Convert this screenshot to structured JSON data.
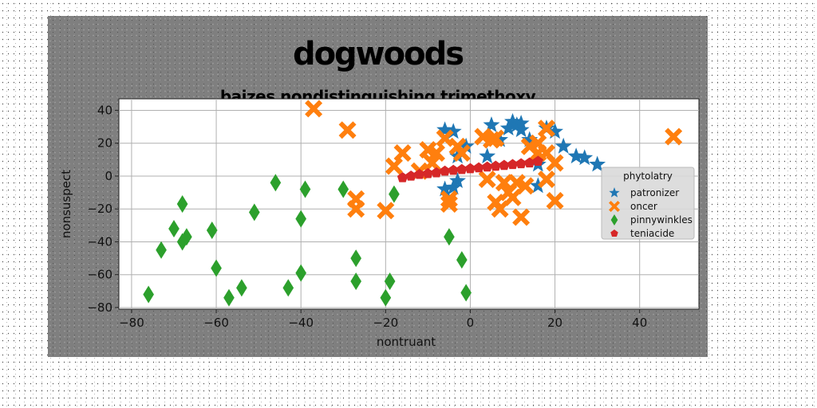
{
  "chart_data": {
    "type": "scatter",
    "title": "dogwoods",
    "subtitle": "baizes nondistinguishing trimethoxy",
    "xlabel": "nontruant",
    "ylabel": "nonsuspect",
    "xlim": [
      -83,
      54
    ],
    "ylim": [
      -81,
      47
    ],
    "xticks": [
      -80,
      -60,
      -40,
      -20,
      0,
      20,
      40
    ],
    "yticks": [
      -80,
      -60,
      -40,
      -20,
      0,
      20,
      40
    ],
    "grid": true,
    "legend": {
      "title": "phytolatry",
      "placement": "center-right"
    },
    "series": [
      {
        "name": "patronizer",
        "marker": "star",
        "color": "#1f77b4",
        "points": [
          [
            -6,
            28
          ],
          [
            -4,
            27
          ],
          [
            -3,
            12
          ],
          [
            -1,
            18
          ],
          [
            -6,
            -8
          ],
          [
            -4,
            -7
          ],
          [
            -3,
            -3
          ],
          [
            4,
            12
          ],
          [
            5,
            31
          ],
          [
            9,
            29
          ],
          [
            10,
            33
          ],
          [
            11,
            31
          ],
          [
            12,
            32
          ],
          [
            12,
            28
          ],
          [
            14,
            22
          ],
          [
            16,
            7
          ],
          [
            16,
            -6
          ],
          [
            18,
            29
          ],
          [
            20,
            27
          ],
          [
            22,
            18
          ],
          [
            25,
            12
          ],
          [
            27,
            11
          ],
          [
            30,
            7
          ],
          [
            7,
            22
          ]
        ]
      },
      {
        "name": "oncer",
        "marker": "x",
        "color": "#ff7f0e",
        "points": [
          [
            -37,
            41
          ],
          [
            -29,
            28
          ],
          [
            -27,
            -14
          ],
          [
            -27,
            -20
          ],
          [
            -20,
            -21
          ],
          [
            -18,
            6
          ],
          [
            -16,
            14
          ],
          [
            -12,
            3
          ],
          [
            -10,
            16
          ],
          [
            -9,
            8
          ],
          [
            -8,
            14
          ],
          [
            -6,
            23
          ],
          [
            -5,
            -14
          ],
          [
            -5,
            -17
          ],
          [
            -3,
            18
          ],
          [
            -2,
            14
          ],
          [
            3,
            24
          ],
          [
            4,
            -2
          ],
          [
            5,
            22
          ],
          [
            6,
            23
          ],
          [
            6,
            -16
          ],
          [
            7,
            -20
          ],
          [
            8,
            -4
          ],
          [
            9,
            -10
          ],
          [
            10,
            -13
          ],
          [
            11,
            -4
          ],
          [
            12,
            -25
          ],
          [
            13,
            -6
          ],
          [
            14,
            18
          ],
          [
            16,
            14
          ],
          [
            16,
            20
          ],
          [
            18,
            14
          ],
          [
            18,
            -2
          ],
          [
            18,
            29
          ],
          [
            20,
            8
          ],
          [
            20,
            -15
          ],
          [
            48,
            24
          ]
        ]
      },
      {
        "name": "pinnywinkles",
        "marker": "diamond",
        "color": "#2ca02c",
        "points": [
          [
            -76,
            -72
          ],
          [
            -73,
            -45
          ],
          [
            -70,
            -32
          ],
          [
            -68,
            -40
          ],
          [
            -68,
            -17
          ],
          [
            -67,
            -37
          ],
          [
            -61,
            -33
          ],
          [
            -60,
            -56
          ],
          [
            -57,
            -74
          ],
          [
            -54,
            -68
          ],
          [
            -51,
            -22
          ],
          [
            -46,
            -4
          ],
          [
            -43,
            -68
          ],
          [
            -40,
            -26
          ],
          [
            -40,
            -59
          ],
          [
            -39,
            -8
          ],
          [
            -30,
            -8
          ],
          [
            -27,
            -50
          ],
          [
            -27,
            -64
          ],
          [
            -20,
            -74
          ],
          [
            -19,
            -64
          ],
          [
            -18,
            -11
          ],
          [
            -5,
            -37
          ],
          [
            -2,
            -51
          ],
          [
            -1,
            -71
          ]
        ]
      },
      {
        "name": "teniacide",
        "marker": "pentagon",
        "color": "#d62728",
        "points": [
          [
            -16,
            -1
          ],
          [
            -14,
            0
          ],
          [
            -12,
            1
          ],
          [
            -10,
            1.5
          ],
          [
            -8,
            2
          ],
          [
            -6,
            3
          ],
          [
            -4,
            3.5
          ],
          [
            -2,
            4
          ],
          [
            0,
            4.5
          ],
          [
            2,
            5
          ],
          [
            4,
            5.5
          ],
          [
            6,
            6
          ],
          [
            8,
            6.5
          ],
          [
            10,
            7
          ],
          [
            12,
            7.5
          ],
          [
            14,
            8
          ],
          [
            16,
            9
          ]
        ]
      }
    ]
  }
}
